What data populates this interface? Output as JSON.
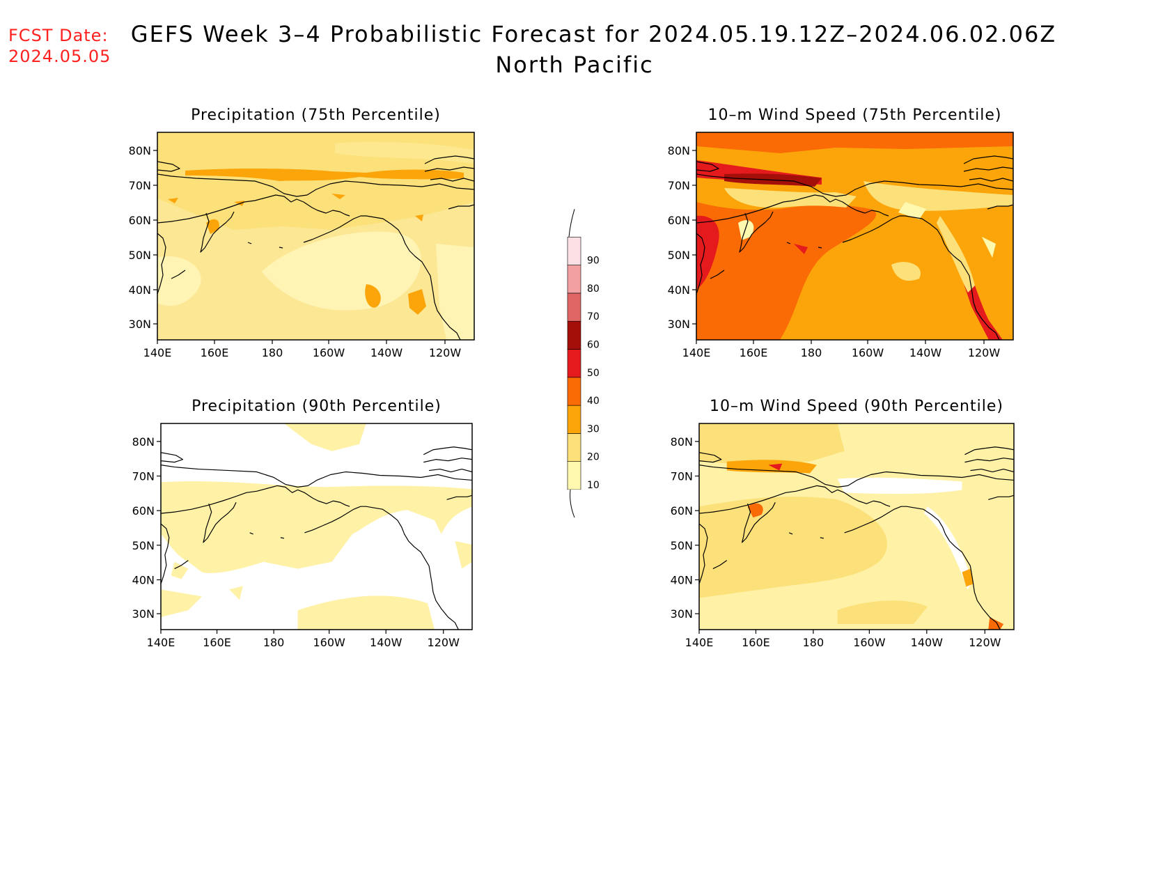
{
  "fcst": {
    "line1": "FCST Date:",
    "line2": "2024.05.05"
  },
  "title": {
    "line1": "GEFS Week 3–4 Probabilistic Forecast for 2024.05.19.12Z–2024.06.02.06Z",
    "line2": "North Pacific"
  },
  "panels": [
    {
      "title": "Precipitation (75th Percentile)",
      "variant": "p75"
    },
    {
      "title": "10–m Wind Speed (75th Percentile)",
      "variant": "w75"
    },
    {
      "title": "Precipitation (90th Percentile)",
      "variant": "p90"
    },
    {
      "title": "10–m Wind Speed (90th Percentile)",
      "variant": "w90"
    }
  ],
  "axes": {
    "lat_labels": [
      "80N",
      "70N",
      "60N",
      "50N",
      "40N",
      "30N"
    ],
    "lon_labels": [
      "140E",
      "160E",
      "180",
      "160W",
      "140W",
      "120W"
    ]
  },
  "colorbar": {
    "levels": [
      "10",
      "20",
      "30",
      "40",
      "50",
      "60",
      "70",
      "80",
      "90"
    ],
    "colors": [
      "#fff9b0",
      "#fce079",
      "#fca50a",
      "#fa6a05",
      "#e41a1c",
      "#a50f0a",
      "#e06666",
      "#f2a0a0",
      "#fde0e6"
    ]
  },
  "colors": {
    "fcst_text": "#ff2020",
    "land_white": "#ffffff"
  }
}
